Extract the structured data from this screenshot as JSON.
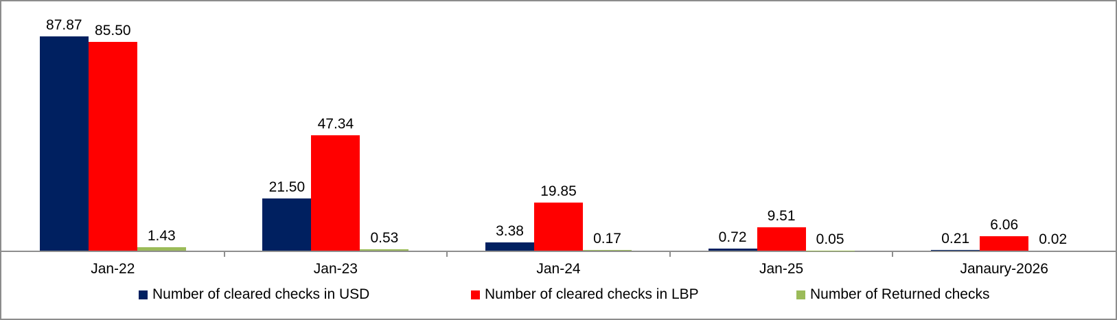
{
  "chart_data": {
    "type": "bar",
    "title": "",
    "xlabel": "",
    "ylabel": "",
    "categories": [
      "Jan-22",
      "Jan-23",
      "Jan-24",
      "Jan-25",
      "Janaury-2026"
    ],
    "series": [
      {
        "name": "Number of cleared checks in USD",
        "color": "#002060",
        "values": [
          87.87,
          21.5,
          3.38,
          0.72,
          0.21
        ],
        "labels": [
          "87.87",
          "21.50",
          "3.38",
          "0.72",
          "0.21"
        ]
      },
      {
        "name": "Number of cleared checks in LBP",
        "color": "#FF0000",
        "values": [
          85.5,
          47.34,
          19.85,
          9.51,
          6.06
        ],
        "labels": [
          "85.50",
          "47.34",
          "19.85",
          "9.51",
          "6.06"
        ]
      },
      {
        "name": "Number of Returned checks",
        "color": "#9BBB59",
        "values": [
          1.43,
          0.53,
          0.17,
          0.05,
          0.02
        ],
        "labels": [
          "1.43",
          "0.53",
          "0.17",
          "0.05",
          "0.02"
        ]
      }
    ],
    "ylim": [
      0,
      100
    ],
    "grid": false,
    "value_labels": true,
    "legend_position": "bottom",
    "axis_color": "#8E8E8E",
    "border_color": "#8C8C8C",
    "background": "#FFFFFF",
    "text_color": "#000000"
  }
}
